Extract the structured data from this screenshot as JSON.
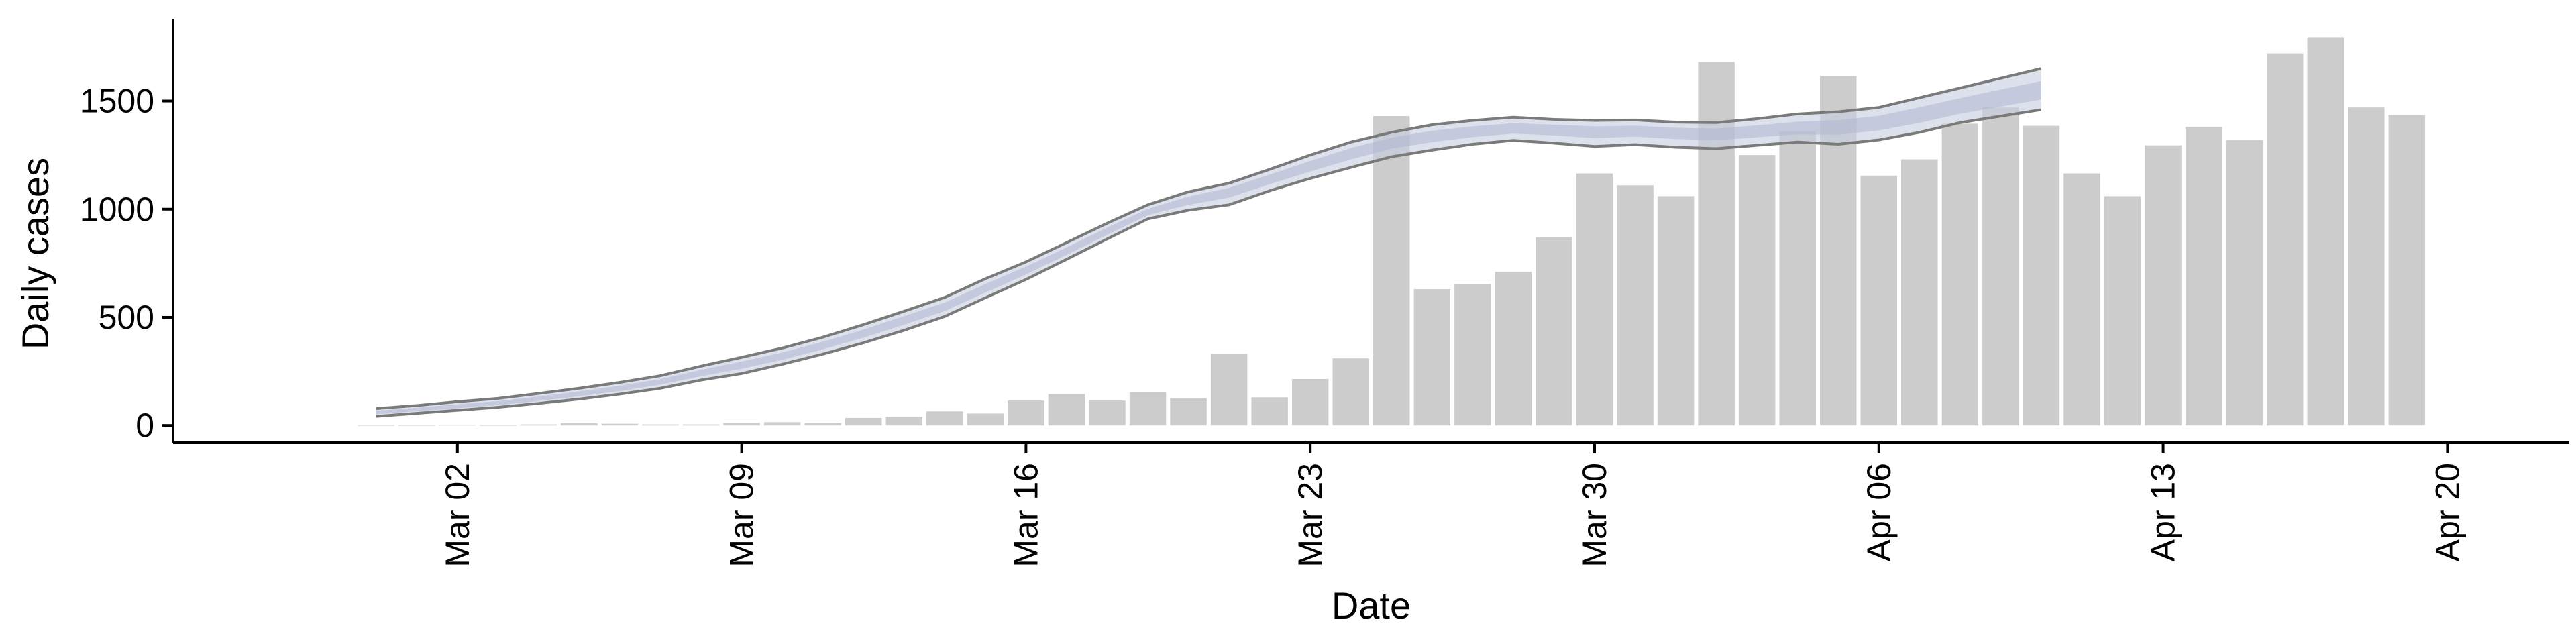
{
  "chart_data": {
    "type": "bar",
    "title": "",
    "xlabel": "Date",
    "ylabel": "Daily cases",
    "ylim": [
      -80,
      1880
    ],
    "xlim": [
      "2020-02-24",
      "2020-04-23"
    ],
    "grid": false,
    "legend": "none",
    "y_ticks": [
      0,
      500,
      1000,
      1500
    ],
    "x_ticks": [
      {
        "date": "2020-03-02",
        "label": "Mar 02"
      },
      {
        "date": "2020-03-09",
        "label": "Mar 09"
      },
      {
        "date": "2020-03-16",
        "label": "Mar 16"
      },
      {
        "date": "2020-03-23",
        "label": "Mar 23"
      },
      {
        "date": "2020-03-30",
        "label": "Mar 30"
      },
      {
        "date": "2020-04-06",
        "label": "Apr 06"
      },
      {
        "date": "2020-04-13",
        "label": "Apr 13"
      },
      {
        "date": "2020-04-20",
        "label": "Apr 20"
      }
    ],
    "bars": {
      "color": "#cccccc",
      "start_date": "2020-02-29",
      "values": [
        2,
        2,
        3,
        2,
        5,
        10,
        8,
        5,
        5,
        12,
        15,
        10,
        35,
        40,
        65,
        55,
        115,
        145,
        115,
        155,
        125,
        330,
        130,
        215,
        310,
        1430,
        630,
        655,
        710,
        870,
        1165,
        1110,
        1060,
        1680,
        1250,
        1360,
        1615,
        1155,
        1230,
        1395,
        1470,
        1385,
        1165,
        1060,
        1295,
        1380,
        1320,
        1720,
        1795,
        1470,
        1435
      ]
    },
    "nowcast": {
      "line_color": "#7a7a7a",
      "band_color": "#c7cde0",
      "start_date": "2020-02-29",
      "median": [
        60,
        73,
        88,
        102,
        122,
        146,
        171,
        202,
        242,
        280,
        320,
        370,
        425,
        487,
        549,
        634,
        717,
        805,
        898,
        986,
        1040,
        1080,
        1140,
        1200,
        1260,
        1310,
        1340,
        1360,
        1375,
        1370,
        1360,
        1365,
        1355,
        1350,
        1362,
        1375,
        1380,
        1400,
        1435,
        1475,
        1510,
        1545
      ],
      "lower": [
        42,
        56,
        70,
        84,
        102,
        122,
        145,
        172,
        210,
        240,
        283,
        330,
        382,
        440,
        504,
        590,
        675,
        768,
        862,
        955,
        995,
        1020,
        1085,
        1142,
        1193,
        1242,
        1273,
        1300,
        1318,
        1305,
        1290,
        1298,
        1286,
        1280,
        1295,
        1310,
        1300,
        1320,
        1355,
        1400,
        1430,
        1460
      ],
      "upper": [
        78,
        92,
        110,
        125,
        148,
        172,
        199,
        230,
        274,
        315,
        358,
        408,
        466,
        528,
        592,
        678,
        756,
        845,
        935,
        1020,
        1080,
        1120,
        1184,
        1250,
        1310,
        1355,
        1390,
        1410,
        1425,
        1415,
        1410,
        1412,
        1402,
        1400,
        1418,
        1440,
        1450,
        1470,
        1515,
        1560,
        1605,
        1650
      ]
    }
  }
}
